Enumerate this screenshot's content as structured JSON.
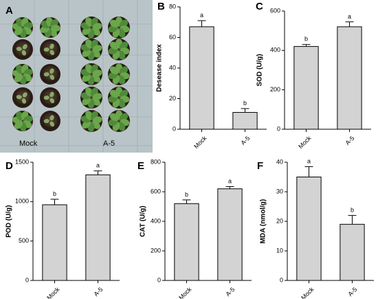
{
  "photo_panel": {
    "panel_letter": "A",
    "group_labels": [
      "Mock",
      "A-5"
    ]
  },
  "chart_data": [
    {
      "type": "bar",
      "panel_letter": "B",
      "title": "",
      "categories": [
        "Mock",
        "A-5"
      ],
      "values": [
        67,
        11
      ],
      "errors": [
        4,
        2.5
      ],
      "significance_letters": [
        "a",
        "b"
      ],
      "xlabel": "",
      "ylabel": "Desease index",
      "ylim": [
        0,
        80
      ],
      "yticks": [
        0,
        20,
        40,
        60,
        80
      ],
      "grid": false,
      "bar_color": "#d3d3d3"
    },
    {
      "type": "bar",
      "panel_letter": "C",
      "title": "",
      "categories": [
        "Mock",
        "A-5"
      ],
      "values": [
        420,
        520
      ],
      "errors": [
        10,
        25
      ],
      "significance_letters": [
        "b",
        "a"
      ],
      "xlabel": "",
      "ylabel": "SOD (U/g)",
      "ylim": [
        0,
        600
      ],
      "yticks": [
        0,
        200,
        400,
        600
      ],
      "grid": false,
      "bar_color": "#d3d3d3"
    },
    {
      "type": "bar",
      "panel_letter": "D",
      "title": "",
      "categories": [
        "Mock",
        "A-5"
      ],
      "values": [
        960,
        1340
      ],
      "errors": [
        70,
        50
      ],
      "significance_letters": [
        "b",
        "a"
      ],
      "xlabel": "",
      "ylabel": "POD (U/g)",
      "ylim": [
        0,
        1500
      ],
      "yticks": [
        0,
        500,
        1000,
        1500
      ],
      "grid": false,
      "bar_color": "#d3d3d3"
    },
    {
      "type": "bar",
      "panel_letter": "E",
      "title": "",
      "categories": [
        "Mock",
        "A-5"
      ],
      "values": [
        520,
        620
      ],
      "errors": [
        25,
        15
      ],
      "significance_letters": [
        "b",
        "a"
      ],
      "xlabel": "",
      "ylabel": "CAT (U/g)",
      "ylim": [
        0,
        800
      ],
      "yticks": [
        0,
        200,
        400,
        600,
        800
      ],
      "grid": false,
      "bar_color": "#d3d3d3"
    },
    {
      "type": "bar",
      "panel_letter": "F",
      "title": "",
      "categories": [
        "Mock",
        "A-5"
      ],
      "values": [
        35,
        19
      ],
      "errors": [
        3.5,
        3
      ],
      "significance_letters": [
        "a",
        "b"
      ],
      "xlabel": "",
      "ylabel": "MDA (nmol/g)",
      "ylim": [
        0,
        40
      ],
      "yticks": [
        0,
        10,
        20,
        30,
        40
      ],
      "grid": false,
      "bar_color": "#d3d3d3"
    }
  ]
}
